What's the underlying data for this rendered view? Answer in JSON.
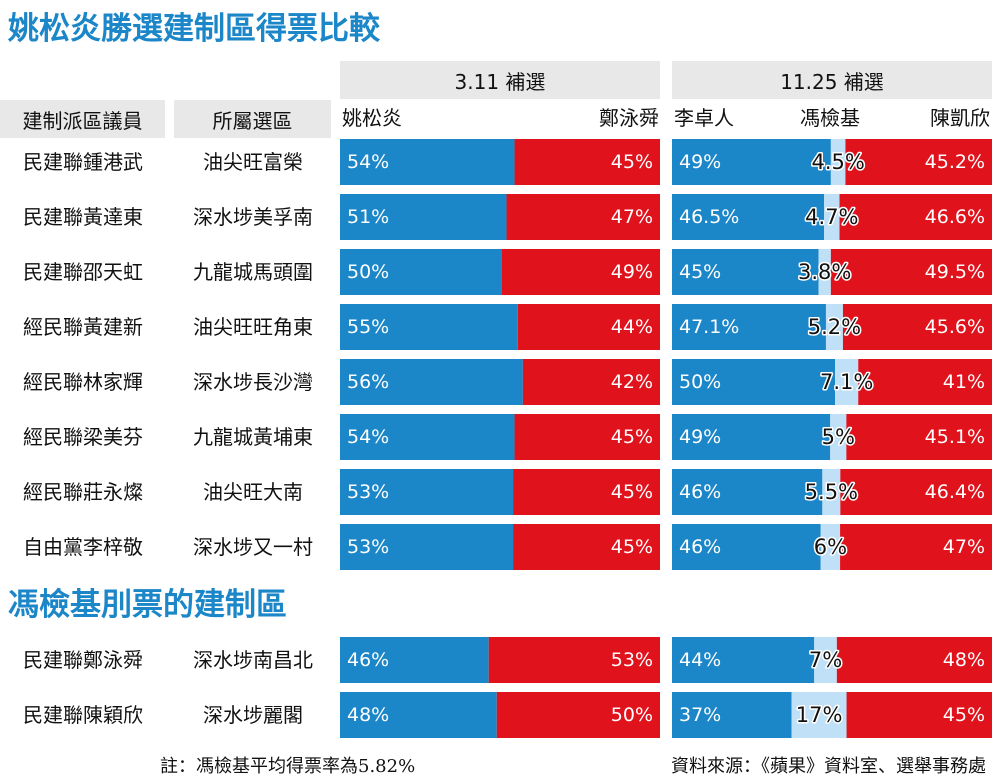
{
  "titles": {
    "main": "姚松炎勝選建制區得票比較",
    "section2": "馮檢基刖票的建制區"
  },
  "headers": {
    "member": "建制派區議員",
    "district": "所屬選區",
    "election1": "3.11 補選",
    "election2": "11.25 補選"
  },
  "candidates": {
    "e1_left": "姚松炎",
    "e1_right": "鄭泳舜",
    "e2_left": "李卓人",
    "e2_mid": "馮檢基",
    "e2_right": "陳凱欣"
  },
  "colors": {
    "blue": "#1b86c8",
    "red": "#e0121c",
    "lightblue": "#bfe0f6",
    "title": "#1b86c8",
    "header_bg": "#e8e8e8"
  },
  "chart_data": {
    "type": "bar",
    "subtype": "stacked-100",
    "categories": [
      "民建聯鍾港武",
      "民建聯黃達東",
      "民建聯邵天虹",
      "經民聯黃建新",
      "經民聯林家輝",
      "經民聯梁美芬",
      "經民聯莊永燦",
      "自由黨李梓敬",
      "民建聯鄭泳舜",
      "民建聯陳穎欣"
    ],
    "rows": [
      {
        "group": 1,
        "member": "民建聯鍾港武",
        "district": "油尖旺富榮",
        "e1": {
          "left": 54,
          "right": 45,
          "left_label": "54%",
          "right_label": "45%"
        },
        "e2": {
          "left": 49,
          "mid": 4.5,
          "right": 45.2,
          "left_label": "49%",
          "mid_label": "4.5%",
          "right_label": "45.2%"
        }
      },
      {
        "group": 1,
        "member": "民建聯黃達東",
        "district": "深水埗美孚南",
        "e1": {
          "left": 51,
          "right": 47,
          "left_label": "51%",
          "right_label": "47%"
        },
        "e2": {
          "left": 46.5,
          "mid": 4.7,
          "right": 46.6,
          "left_label": "46.5%",
          "mid_label": "4.7%",
          "right_label": "46.6%"
        }
      },
      {
        "group": 1,
        "member": "民建聯邵天虹",
        "district": "九龍城馬頭圍",
        "e1": {
          "left": 50,
          "right": 49,
          "left_label": "50%",
          "right_label": "49%"
        },
        "e2": {
          "left": 45,
          "mid": 3.8,
          "right": 49.5,
          "left_label": "45%",
          "mid_label": "3.8%",
          "right_label": "49.5%"
        }
      },
      {
        "group": 1,
        "member": "經民聯黃建新",
        "district": "油尖旺旺角東",
        "e1": {
          "left": 55,
          "right": 44,
          "left_label": "55%",
          "right_label": "44%"
        },
        "e2": {
          "left": 47.1,
          "mid": 5.2,
          "right": 45.6,
          "left_label": "47.1%",
          "mid_label": "5.2%",
          "right_label": "45.6%"
        }
      },
      {
        "group": 1,
        "member": "經民聯林家輝",
        "district": "深水埗長沙灣",
        "e1": {
          "left": 56,
          "right": 42,
          "left_label": "56%",
          "right_label": "42%"
        },
        "e2": {
          "left": 50,
          "mid": 7.1,
          "right": 41,
          "left_label": "50%",
          "mid_label": "7.1%",
          "right_label": "41%"
        }
      },
      {
        "group": 1,
        "member": "經民聯梁美芬",
        "district": "九龍城黃埔東",
        "e1": {
          "left": 54,
          "right": 45,
          "left_label": "54%",
          "right_label": "45%"
        },
        "e2": {
          "left": 49,
          "mid": 5,
          "right": 45.1,
          "left_label": "49%",
          "mid_label": "5%",
          "right_label": "45.1%"
        }
      },
      {
        "group": 1,
        "member": "經民聯莊永燦",
        "district": "油尖旺大南",
        "e1": {
          "left": 53,
          "right": 45,
          "left_label": "53%",
          "right_label": "45%"
        },
        "e2": {
          "left": 46,
          "mid": 5.5,
          "right": 46.4,
          "left_label": "46%",
          "mid_label": "5.5%",
          "right_label": "46.4%"
        }
      },
      {
        "group": 1,
        "member": "自由黨李梓敬",
        "district": "深水埗又一村",
        "e1": {
          "left": 53,
          "right": 45,
          "left_label": "53%",
          "right_label": "45%"
        },
        "e2": {
          "left": 46,
          "mid": 6,
          "right": 47,
          "left_label": "46%",
          "mid_label": "6%",
          "right_label": "47%"
        }
      },
      {
        "group": 2,
        "member": "民建聯鄭泳舜",
        "district": "深水埗南昌北",
        "e1": {
          "left": 46,
          "right": 53,
          "left_label": "46%",
          "right_label": "53%"
        },
        "e2": {
          "left": 44,
          "mid": 7,
          "right": 48,
          "left_label": "44%",
          "mid_label": "7%",
          "right_label": "48%"
        }
      },
      {
        "group": 2,
        "member": "民建聯陳穎欣",
        "district": "深水埗麗閣",
        "e1": {
          "left": 48,
          "right": 50,
          "left_label": "48%",
          "right_label": "50%"
        },
        "e2": {
          "left": 37,
          "mid": 17,
          "right": 45,
          "left_label": "37%",
          "mid_label": "17%",
          "right_label": "45%"
        }
      }
    ]
  },
  "footnote": "註：馮檢基平均得票率為5.82%",
  "source": "資料來源：《蘋果》資料室、選舉事務處"
}
